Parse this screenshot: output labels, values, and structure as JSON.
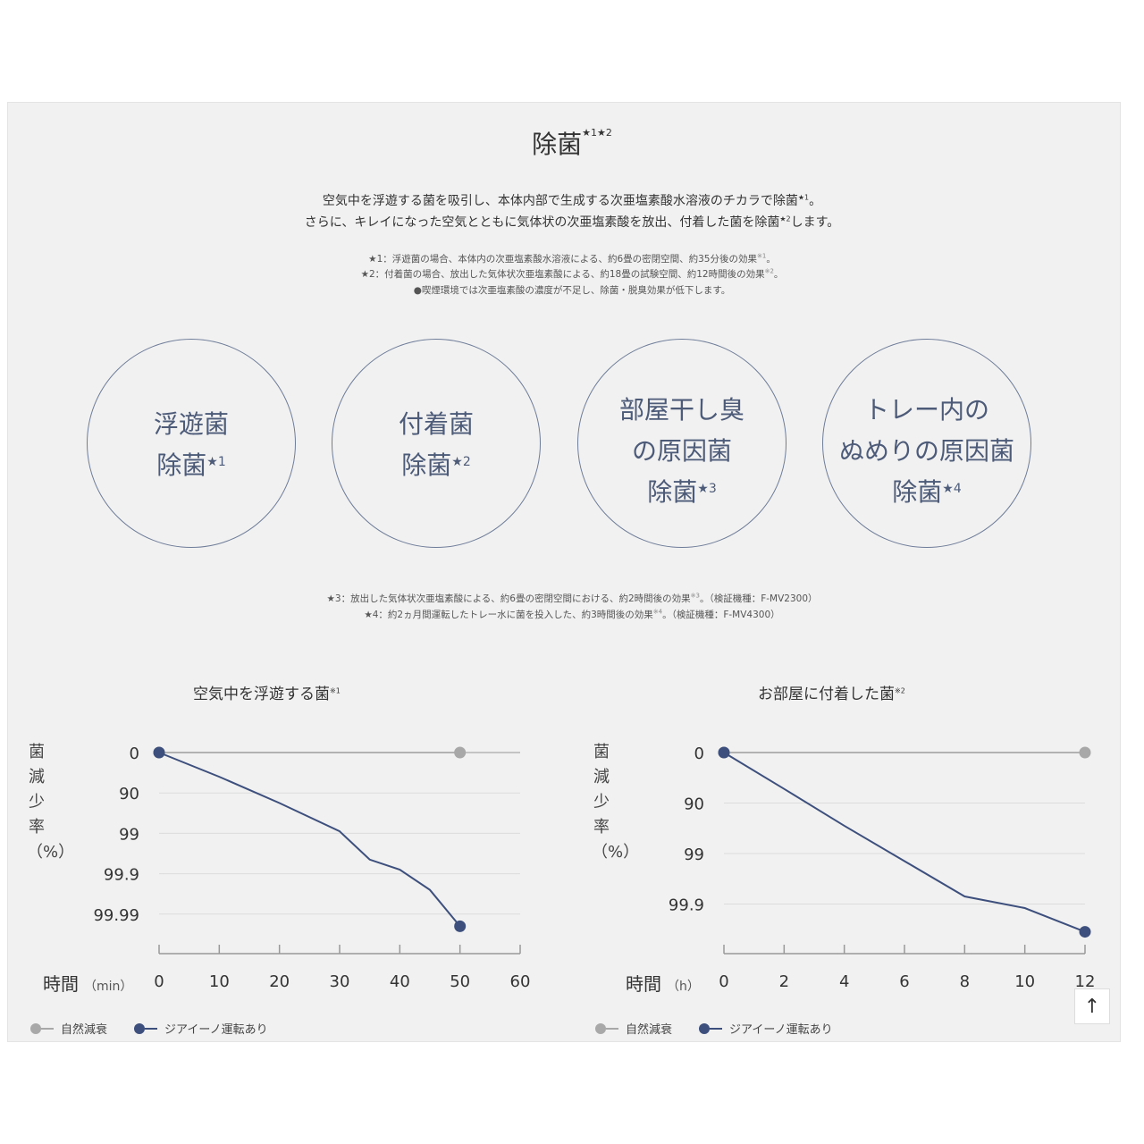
{
  "header": {
    "title": "除菌",
    "title_sup": "★1★2",
    "lead_line1": "空気中を浮遊する菌を吸引し、本体内部で生成する次亜塩素酸水溶液のチカラで除菌",
    "lead_line1_sup": "★1",
    "lead_line1_end": "。",
    "lead_line2": "さらに、キレイになった空気とともに気体状の次亜塩素酸を放出、付着した菌を除菌",
    "lead_line2_sup": "★2",
    "lead_line2_end": "します。"
  },
  "notes_top": [
    {
      "text": "★1：浮遊菌の場合、本体内の次亜塩素酸水溶液による、約6畳の密閉空間、約35分後の効果",
      "sup": "※1",
      "end": "。"
    },
    {
      "text": "★2：付着菌の場合、放出した気体状次亜塩素酸による、約18畳の試験空間、約12時間後の効果",
      "sup": "※2",
      "end": "。"
    },
    {
      "text": "●喫煙環境では次亜塩素酸の濃度が不足し、除菌・脱臭効果が低下します。",
      "sup": "",
      "end": ""
    }
  ],
  "circles": [
    {
      "lines": [
        "浮遊菌",
        "除菌"
      ],
      "sup": "★1"
    },
    {
      "lines": [
        "付着菌",
        "除菌"
      ],
      "sup": "★2"
    },
    {
      "lines": [
        "部屋干し臭",
        "の原因菌",
        "除菌"
      ],
      "sup": "★3"
    },
    {
      "lines": [
        "トレー内の",
        "ぬめりの原因菌",
        "除菌"
      ],
      "sup": "★4"
    }
  ],
  "notes_bottom": [
    {
      "text": "★3：放出した気体状次亜塩素酸による、約6畳の密閉空間における、約2時間後の効果",
      "sup": "※3",
      "end": "。（検証機種：F-MV2300）"
    },
    {
      "text": "★4：約2ヵ月間運転したトレー水に菌を投入した、約3時間後の効果",
      "sup": "※4",
      "end": "。（検証機種：F-MV4300）"
    }
  ],
  "legend": {
    "natural": "自然減衰",
    "ziaino": "ジアイーノ運転あり"
  },
  "colors": {
    "natural": "#a8a8a8",
    "ziaino": "#3d4f7c",
    "axis": "#999999",
    "circle": "#6f7d99"
  },
  "back_to_top_icon": "↑",
  "chart_data": [
    {
      "type": "line",
      "title": "空気中を浮遊する菌",
      "title_sup": "※1",
      "ylabel": "菌減少率（%）",
      "xlabel": "時間",
      "xunit": "（min）",
      "x_ticks": [
        "0",
        "10",
        "20",
        "30",
        "40",
        "50",
        "60"
      ],
      "xlim": [
        0,
        60
      ],
      "y_ticks": [
        "0",
        "90",
        "99",
        "99.9",
        "99.99"
      ],
      "y_scale": "log-reduction",
      "ylim_log": [
        0,
        5
      ],
      "series": [
        {
          "name": "自然減衰",
          "x": [
            0,
            50
          ],
          "log_reduction": [
            0,
            0
          ],
          "markers_at": [
            0,
            1
          ]
        },
        {
          "name": "ジアイーノ運転あり",
          "x": [
            0,
            10,
            20,
            30,
            35,
            40,
            45,
            50
          ],
          "log_reduction": [
            0,
            0.6,
            1.25,
            1.95,
            2.65,
            2.9,
            3.4,
            4.3
          ],
          "markers_at": [
            0,
            7
          ]
        }
      ]
    },
    {
      "type": "line",
      "title": "お部屋に付着した菌",
      "title_sup": "※2",
      "ylabel": "菌減少率（%）",
      "xlabel": "時間",
      "xunit": "（h）",
      "x_ticks": [
        "0",
        "2",
        "4",
        "6",
        "8",
        "10",
        "12"
      ],
      "xlim": [
        0,
        12
      ],
      "y_ticks": [
        "0",
        "90",
        "99",
        "99.9"
      ],
      "y_scale": "log-reduction",
      "ylim_log": [
        0,
        4
      ],
      "series": [
        {
          "name": "自然減衰",
          "x": [
            0,
            12
          ],
          "log_reduction": [
            0,
            0
          ],
          "markers_at": [
            0,
            1
          ]
        },
        {
          "name": "ジアイーノ運転あり",
          "x": [
            0,
            2,
            4,
            6,
            8,
            10,
            12
          ],
          "log_reduction": [
            0,
            0.72,
            1.45,
            2.15,
            2.85,
            3.08,
            3.55
          ],
          "markers_at": [
            0,
            6
          ]
        }
      ]
    }
  ]
}
